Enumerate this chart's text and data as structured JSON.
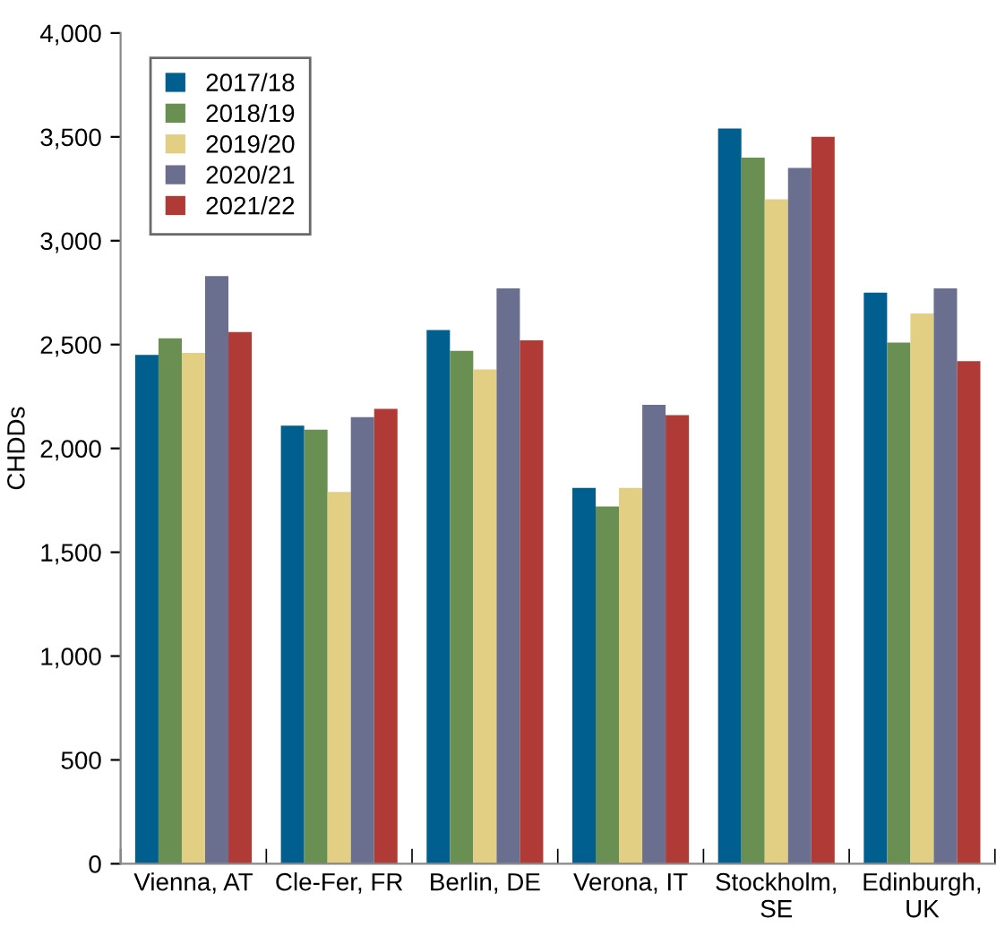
{
  "chart_data": {
    "type": "bar",
    "ylabel": "CHDDs",
    "categories": [
      "Vienna, AT",
      "Cle-Fer, FR",
      "Berlin, DE",
      "Verona, IT",
      "Stockholm,\nSE",
      "Edinburgh,\nUK"
    ],
    "series": [
      {
        "name": "2017/18",
        "color": "#005f8f",
        "values": [
          2450,
          2110,
          2570,
          1810,
          3540,
          2750
        ]
      },
      {
        "name": "2018/19",
        "color": "#6a8f52",
        "values": [
          2530,
          2090,
          2470,
          1720,
          3400,
          2510
        ]
      },
      {
        "name": "2019/20",
        "color": "#e2cf84",
        "values": [
          2460,
          1790,
          2380,
          1810,
          3200,
          2650
        ]
      },
      {
        "name": "2020/21",
        "color": "#6b6f8f",
        "values": [
          2830,
          2150,
          2770,
          2210,
          3350,
          2770
        ]
      },
      {
        "name": "2021/22",
        "color": "#b03a36",
        "values": [
          2560,
          2190,
          2520,
          2160,
          3500,
          2420
        ]
      }
    ],
    "ylim": [
      0,
      4000
    ],
    "yticks": [
      {
        "value": 0,
        "label": "0"
      },
      {
        "value": 500,
        "label": "500"
      },
      {
        "value": 1000,
        "label": "1,000"
      },
      {
        "value": 1500,
        "label": "1,500"
      },
      {
        "value": 2000,
        "label": "2,000"
      },
      {
        "value": 2500,
        "label": "2,500"
      },
      {
        "value": 3000,
        "label": "3,000"
      },
      {
        "value": 3500,
        "label": "3,500"
      },
      {
        "value": 4000,
        "label": "4,000"
      }
    ],
    "legend": "top left",
    "grid": false
  }
}
